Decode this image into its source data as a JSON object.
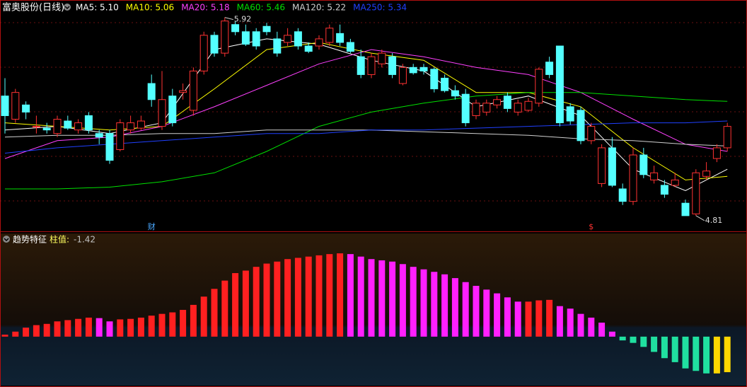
{
  "chart_data": [
    {
      "type": "candlestick",
      "title": "富奥股份(日线)",
      "ylim": [
        4.75,
        5.97
      ],
      "up_color": "#ff3232",
      "down_color": "#54ffff",
      "open": [
        5.48,
        5.35,
        5.43,
        5.31,
        5.3,
        5.27,
        5.34,
        5.29,
        5.37,
        5.27,
        5.27,
        5.18,
        5.29,
        5.3,
        5.55,
        5.31,
        5.48,
        5.5,
        5.4,
        5.62,
        5.82,
        5.72,
        5.88,
        5.84,
        5.84,
        5.87,
        5.8,
        5.78,
        5.84,
        5.76,
        5.76,
        5.78,
        5.83,
        5.78,
        5.7,
        5.6,
        5.66,
        5.7,
        5.55,
        5.64,
        5.64,
        5.63,
        5.58,
        5.51,
        5.49,
        5.37,
        5.39,
        5.43,
        5.48,
        5.39,
        5.4,
        5.44,
        5.67,
        5.76,
        5.42,
        5.4,
        5.23,
        4.99,
        5.19,
        4.96,
        4.89,
        5.15,
        5.01,
        4.98,
        4.98,
        4.88,
        4.82,
        5.03,
        5.13,
        5.19
      ],
      "close": [
        5.37,
        5.5,
        5.39,
        5.31,
        5.29,
        5.35,
        5.3,
        5.33,
        5.29,
        5.25,
        5.12,
        5.33,
        5.33,
        5.34,
        5.46,
        5.46,
        5.33,
        5.51,
        5.62,
        5.82,
        5.72,
        5.9,
        5.84,
        5.77,
        5.76,
        5.84,
        5.72,
        5.82,
        5.76,
        5.73,
        5.8,
        5.86,
        5.78,
        5.73,
        5.6,
        5.7,
        5.72,
        5.6,
        5.64,
        5.61,
        5.62,
        5.52,
        5.51,
        5.48,
        5.33,
        5.44,
        5.44,
        5.46,
        5.41,
        5.44,
        5.45,
        5.63,
        5.6,
        5.33,
        5.34,
        5.23,
        5.31,
        5.19,
        4.98,
        4.89,
        5.15,
        5.04,
        5.05,
        4.93,
        5.01,
        4.81,
        5.05,
        5.06,
        5.19,
        5.31
      ],
      "high": [
        5.58,
        5.52,
        5.45,
        5.37,
        5.33,
        5.37,
        5.37,
        5.35,
        5.39,
        5.29,
        5.29,
        5.35,
        5.37,
        5.37,
        5.6,
        5.62,
        5.52,
        5.55,
        5.64,
        5.84,
        5.84,
        5.92,
        5.9,
        5.88,
        5.86,
        5.89,
        5.84,
        5.86,
        5.86,
        5.78,
        5.82,
        5.88,
        5.88,
        5.8,
        5.74,
        5.72,
        5.74,
        5.72,
        5.66,
        5.66,
        5.66,
        5.64,
        5.6,
        5.54,
        5.52,
        5.46,
        5.46,
        5.48,
        5.5,
        5.46,
        5.47,
        5.64,
        5.7,
        5.76,
        5.44,
        5.42,
        5.33,
        5.21,
        5.25,
        4.99,
        5.19,
        5.19,
        5.09,
        5.01,
        5.05,
        4.9,
        5.07,
        5.11,
        5.21,
        5.33
      ],
      "low": [
        5.27,
        5.33,
        5.35,
        5.27,
        5.27,
        5.25,
        5.29,
        5.27,
        5.27,
        5.21,
        5.1,
        5.17,
        5.27,
        5.29,
        5.42,
        5.29,
        5.31,
        5.46,
        5.37,
        5.6,
        5.7,
        5.7,
        5.82,
        5.76,
        5.74,
        5.82,
        5.7,
        5.76,
        5.74,
        5.72,
        5.74,
        5.76,
        5.76,
        5.72,
        5.58,
        5.58,
        5.64,
        5.58,
        5.54,
        5.6,
        5.6,
        5.5,
        5.5,
        5.46,
        5.31,
        5.35,
        5.37,
        5.41,
        5.39,
        5.37,
        5.39,
        5.42,
        5.58,
        5.31,
        5.32,
        5.21,
        5.21,
        4.97,
        4.97,
        4.87,
        4.87,
        5.02,
        4.99,
        4.91,
        4.97,
        4.81,
        4.81,
        5.01,
        5.11,
        5.17
      ],
      "max_label": 5.92,
      "min_label": 4.81,
      "events": [
        {
          "text": "财",
          "index": 14,
          "color": "#4aa8ff"
        },
        {
          "text": "$",
          "index": 56,
          "color": "#ff3232"
        }
      ],
      "ma_x": [
        0,
        5,
        10,
        15,
        20,
        25,
        30,
        35,
        40,
        45,
        50,
        55,
        60,
        65,
        69
      ],
      "series": [
        {
          "name": "MA5: 5.10",
          "color": "#ffffff",
          "values": [
            5.29,
            5.31,
            5.27,
            5.33,
            5.74,
            5.8,
            5.77,
            5.68,
            5.62,
            5.42,
            5.48,
            5.37,
            5.07,
            4.95,
            5.07
          ]
        },
        {
          "name": "MA10: 5.06",
          "color": "#ffff00",
          "values": [
            5.33,
            5.31,
            5.29,
            5.31,
            5.52,
            5.74,
            5.78,
            5.72,
            5.68,
            5.5,
            5.5,
            5.42,
            5.19,
            5.01,
            5.03
          ]
        },
        {
          "name": "MA20: 5.18",
          "color": "#ff40ff",
          "values": [
            5.13,
            5.23,
            5.25,
            5.31,
            5.42,
            5.54,
            5.66,
            5.74,
            5.7,
            5.64,
            5.6,
            5.5,
            5.35,
            5.21,
            5.17
          ]
        },
        {
          "name": "MA60: 5.46",
          "color": "#00e000",
          "values": [
            4.96,
            4.96,
            4.97,
            5.0,
            5.05,
            5.17,
            5.31,
            5.39,
            5.44,
            5.48,
            5.5,
            5.5,
            5.48,
            5.46,
            5.45
          ]
        },
        {
          "name": "MA120: 5.22",
          "color": "#d0d0d0",
          "values": [
            5.25,
            5.26,
            5.26,
            5.27,
            5.27,
            5.29,
            5.29,
            5.29,
            5.28,
            5.27,
            5.26,
            5.24,
            5.23,
            5.21,
            5.2
          ]
        },
        {
          "name": "MA250: 5.34",
          "color": "#2040ff",
          "values": [
            5.16,
            5.19,
            5.21,
            5.23,
            5.25,
            5.27,
            5.27,
            5.29,
            5.29,
            5.3,
            5.31,
            5.32,
            5.33,
            5.33,
            5.34
          ]
        }
      ]
    },
    {
      "type": "bar",
      "title": "趋势特征",
      "value_name": "柱值:",
      "value_label": "-1.42",
      "ylim": [
        -1.9,
        3.7
      ],
      "colors": {
        "rise_positive": "#ff2020",
        "fall_positive": "#ff20ff",
        "fall_negative": "#20e0a0",
        "rise_negative": "#ffd700"
      },
      "values": [
        0.08,
        0.2,
        0.36,
        0.46,
        0.51,
        0.61,
        0.66,
        0.71,
        0.76,
        0.74,
        0.61,
        0.69,
        0.71,
        0.76,
        0.84,
        0.91,
        0.97,
        1.07,
        1.27,
        1.6,
        1.91,
        2.24,
        2.54,
        2.64,
        2.79,
        2.92,
        3.0,
        3.1,
        3.15,
        3.2,
        3.25,
        3.3,
        3.33,
        3.3,
        3.2,
        3.1,
        3.05,
        3.0,
        2.9,
        2.79,
        2.69,
        2.59,
        2.49,
        2.34,
        2.18,
        2.03,
        1.88,
        1.73,
        1.57,
        1.4,
        1.4,
        1.45,
        1.47,
        1.22,
        1.12,
        0.91,
        0.76,
        0.56,
        0.2,
        -0.15,
        -0.25,
        -0.41,
        -0.61,
        -0.86,
        -1.02,
        -1.27,
        -1.37,
        -1.47,
        -1.47,
        -1.42
      ]
    }
  ]
}
